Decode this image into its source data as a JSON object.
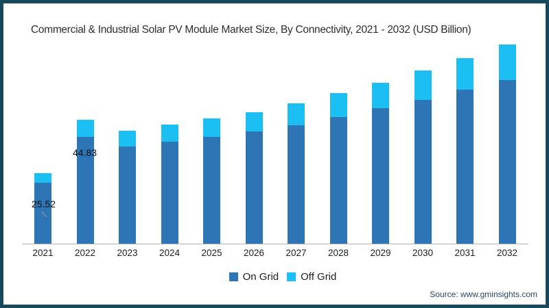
{
  "frame": {
    "border_color": "#17495A",
    "background": "#ffffff"
  },
  "chart_data": {
    "type": "bar",
    "stacked": true,
    "title": "Commercial & Industrial Solar PV Module Market Size, By Connectivity, 2021 - 2032 (USD Billion)",
    "xlabel": "",
    "ylabel": "USD Billion",
    "categories": [
      "2021",
      "2022",
      "2023",
      "2024",
      "2025",
      "2026",
      "2027",
      "2028",
      "2029",
      "2030",
      "2031",
      "2032"
    ],
    "series": [
      {
        "name": "On Grid",
        "color": "#2E75B5",
        "values": [
          22.1,
          38.6,
          35.2,
          37.0,
          38.6,
          40.7,
          42.9,
          45.8,
          49.0,
          52.1,
          55.7,
          59.2
        ]
      },
      {
        "name": "Off Grid",
        "color": "#1CBFF2",
        "values": [
          3.42,
          6.23,
          5.8,
          6.1,
          6.8,
          6.9,
          8.0,
          8.6,
          9.2,
          10.6,
          11.5,
          12.9
        ]
      }
    ],
    "totals": [
      25.52,
      44.83,
      41.0,
      43.1,
      45.4,
      47.6,
      50.9,
      54.4,
      58.2,
      62.7,
      67.2,
      72.1
    ],
    "annotations": [
      {
        "category": "2021",
        "text": "25.52"
      },
      {
        "category": "2022",
        "text": "44.83"
      }
    ],
    "ylim": [
      0,
      75
    ],
    "grid": false,
    "legend_position": "bottom",
    "axis_line_color": "#b0b0b0"
  },
  "legend": {
    "items": [
      {
        "label": "On Grid",
        "color": "#2E75B5"
      },
      {
        "label": "Off Grid",
        "color": "#1CBFF2"
      }
    ]
  },
  "source": {
    "text": "Source: www.gminsights.com"
  }
}
